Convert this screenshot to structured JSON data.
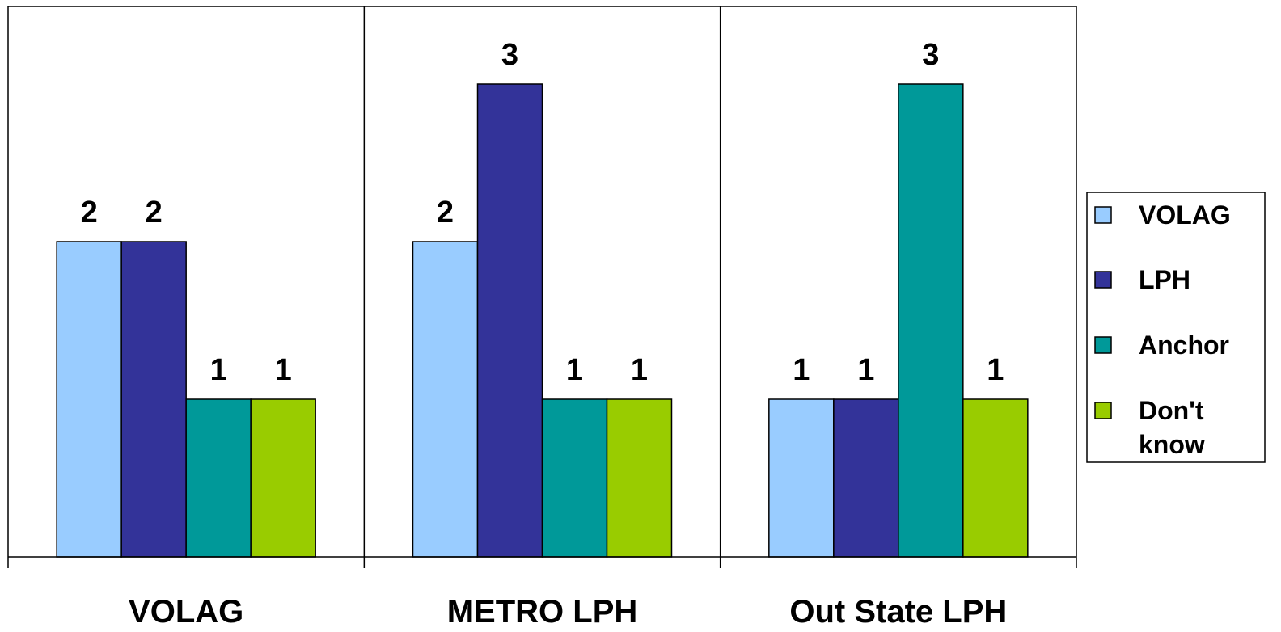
{
  "chart_data": {
    "type": "bar",
    "categories": [
      "VOLAG",
      "METRO LPH",
      "Out State LPH"
    ],
    "series": [
      {
        "name": "VOLAG",
        "values": [
          2,
          2,
          1
        ],
        "color": "#99CCFF"
      },
      {
        "name": "LPH",
        "values": [
          2,
          3,
          1
        ],
        "color": "#333399"
      },
      {
        "name": "Anchor",
        "values": [
          1,
          1,
          3
        ],
        "color": "#009999"
      },
      {
        "name": "Don't know",
        "values": [
          1,
          1,
          1
        ],
        "color": "#99CC00"
      }
    ],
    "data_labels": [
      [
        "2",
        "2",
        "1"
      ],
      [
        "2",
        "3",
        "1"
      ],
      [
        "1",
        "1",
        "3"
      ],
      [
        "1",
        "1",
        "1"
      ]
    ],
    "title": "",
    "xlabel": "",
    "ylabel": "",
    "ylim": [
      0,
      3.5
    ],
    "grid": false,
    "legend_position": "right"
  }
}
